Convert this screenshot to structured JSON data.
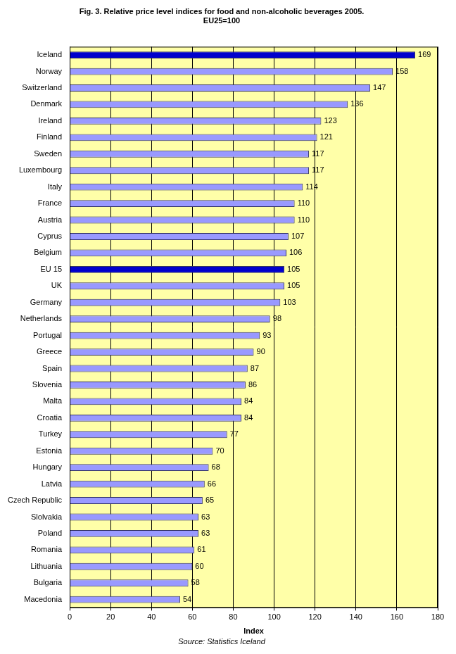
{
  "chart_data": {
    "type": "bar",
    "orientation": "horizontal",
    "title": "Fig. 3. Relative price level indices for food and non-alcoholic beverages 2005.",
    "subtitle": "EU25=100",
    "x_label": "Index",
    "source": "Source: Statistics Iceland",
    "categories": [
      "Iceland",
      "Norway",
      "Switzerland",
      "Denmark",
      "Ireland",
      "Finland",
      "Sweden",
      "Luxembourg",
      "Italy",
      "France",
      "Austria",
      "Cyprus",
      "Belgium",
      "EU 15",
      "UK",
      "Germany",
      "Netherlands",
      "Portugal",
      "Greece",
      "Spain",
      "Slovenia",
      "Malta",
      "Croatia",
      "Turkey",
      "Estonia",
      "Hungary",
      "Latvia",
      "Czech Republic",
      "Slolvakia",
      "Poland",
      "Romania",
      "Lithuania",
      "Bulgaria",
      "Macedonia"
    ],
    "values": [
      169,
      158,
      147,
      136,
      123,
      121,
      117,
      117,
      114,
      110,
      110,
      107,
      106,
      105,
      105,
      103,
      98,
      93,
      90,
      87,
      86,
      84,
      84,
      77,
      70,
      68,
      66,
      65,
      63,
      63,
      61,
      60,
      58,
      54
    ],
    "colors": [
      "#0000cc",
      "#9999ff",
      "#9999ff",
      "#9999ff",
      "#9999ff",
      "#9999ff",
      "#9999ff",
      "#9999ff",
      "#9999ff",
      "#9999ff",
      "#9999ff",
      "#9999ff",
      "#9999ff",
      "#0000cc",
      "#9999ff",
      "#9999ff",
      "#9999ff",
      "#9999ff",
      "#9999ff",
      "#9999ff",
      "#9999ff",
      "#9999ff",
      "#9999ff",
      "#9999ff",
      "#9999ff",
      "#9999ff",
      "#9999ff",
      "#9999ff",
      "#9999ff",
      "#9999ff",
      "#9999ff",
      "#9999ff",
      "#9999ff",
      "#9999ff"
    ],
    "xlim": [
      0,
      180
    ],
    "xticks": [
      0,
      20,
      40,
      60,
      80,
      100,
      120,
      140,
      160,
      180
    ],
    "grid": true,
    "data_labels": true
  }
}
